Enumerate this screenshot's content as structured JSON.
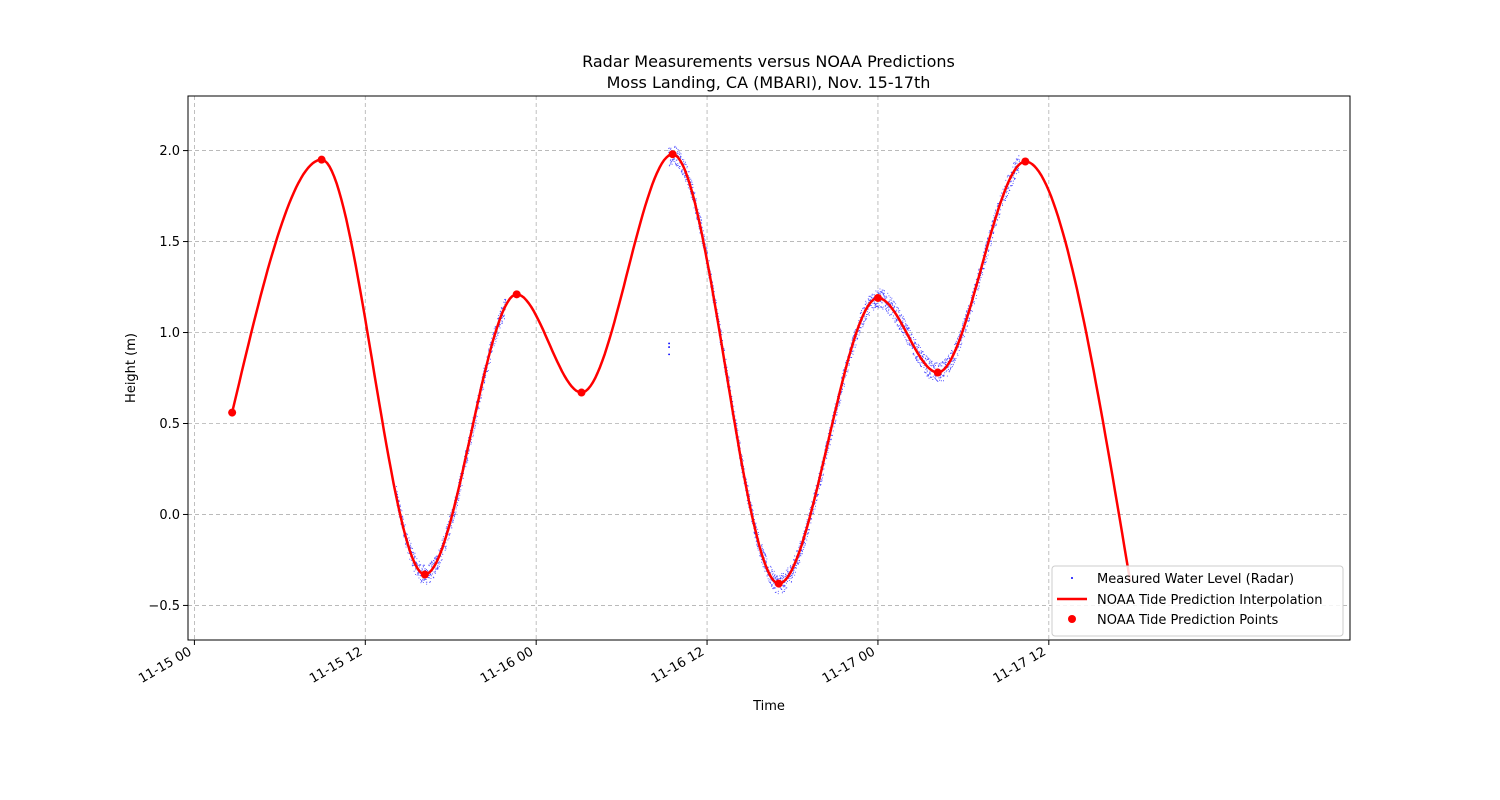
{
  "chart_data": {
    "type": "line",
    "title": "Radar Measurements versus NOAA Predictions",
    "subtitle": "Moss Landing, CA (MBARI), Nov. 15-17th",
    "xlabel": "Time",
    "ylabel": "Height (m)",
    "x_tick_labels": [
      "11-15 00",
      "11-15 12",
      "11-16 00",
      "11-16 12",
      "11-17 00",
      "11-17 12"
    ],
    "x_ticks": [
      "2024-11-15 00:00",
      "2024-11-15 12:00",
      "2024-11-16 00:00",
      "2024-11-16 12:00",
      "2024-11-17 00:00",
      "2024-11-17 12:00"
    ],
    "y_tick_labels": [
      "−0.5",
      "0.0",
      "0.5",
      "1.0",
      "1.5",
      "2.0"
    ],
    "y_ticks": [
      -0.5,
      0.0,
      0.5,
      1.0,
      1.5,
      2.0
    ],
    "xlim": [
      "2024-11-14 23:33",
      "2024-11-18 09:09"
    ],
    "ylim": [
      -0.69,
      2.3
    ],
    "grid": true,
    "legend_position": "lower right",
    "series": [
      {
        "name": "NOAA Tide Prediction Points",
        "kind": "scatter",
        "color": "#ff0000",
        "points": [
          {
            "x": "2024-11-15 02:39",
            "y": 0.56
          },
          {
            "x": "2024-11-15 08:56",
            "y": 1.95
          },
          {
            "x": "2024-11-15 16:11",
            "y": -0.33
          },
          {
            "x": "2024-11-15 22:38",
            "y": 1.21
          },
          {
            "x": "2024-11-16 03:11",
            "y": 0.67
          },
          {
            "x": "2024-11-16 09:35",
            "y": 1.98
          },
          {
            "x": "2024-11-16 17:02",
            "y": -0.38
          },
          {
            "x": "2024-11-17 00:00",
            "y": 1.19
          },
          {
            "x": "2024-11-17 04:12",
            "y": 0.78
          },
          {
            "x": "2024-11-17 10:21",
            "y": 1.94
          }
        ],
        "end_point": {
          "x": "2024-11-17 17:43",
          "y": -0.37
        }
      },
      {
        "name": "NOAA Tide Prediction Interpolation",
        "kind": "line",
        "color": "#ff0000",
        "interpolation": "smooth through prediction points"
      },
      {
        "name": "Measured Water Level (Radar)",
        "kind": "scatter",
        "color": "#0000ff",
        "segments": [
          {
            "start": "2024-11-15 14:08",
            "end": "2024-11-15 21:50"
          },
          {
            "start": "2024-11-16 09:16",
            "end": "2024-11-17 06:16"
          },
          {
            "start": "2024-11-17 06:16",
            "end": "2024-11-17 09:55"
          }
        ],
        "outliers": [
          {
            "x": "2024-11-16 09:20",
            "y": 0.94
          },
          {
            "x": "2024-11-16 09:20",
            "y": 0.92
          },
          {
            "x": "2024-11-16 09:20",
            "y": 0.88
          }
        ]
      }
    ]
  }
}
